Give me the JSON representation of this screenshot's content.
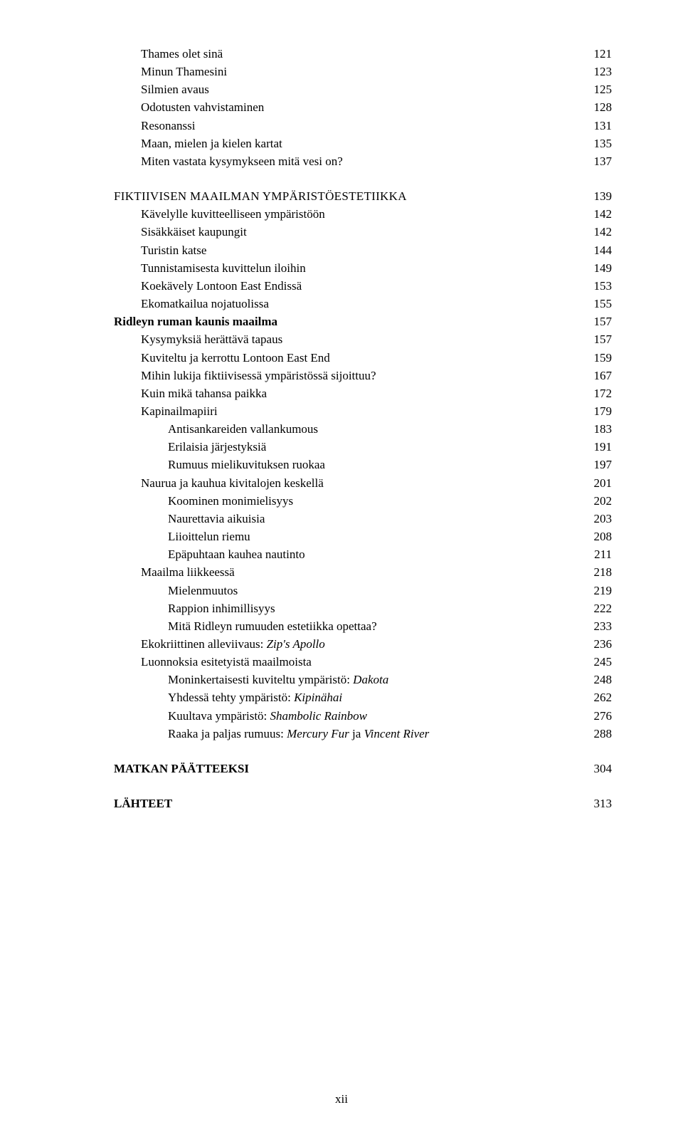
{
  "entries": [
    {
      "level": 1,
      "label": "Thames olet sinä",
      "page": "121"
    },
    {
      "level": 1,
      "label": "Minun Thamesini",
      "page": "123"
    },
    {
      "level": 1,
      "label": "Silmien avaus",
      "page": "125"
    },
    {
      "level": 1,
      "label": "Odotusten vahvistaminen",
      "page": "128"
    },
    {
      "level": 1,
      "label": "Resonanssi",
      "page": "131"
    },
    {
      "level": 1,
      "label": "Maan, mielen ja kielen kartat",
      "page": "135"
    },
    {
      "level": 1,
      "label": "Miten vastata kysymykseen mitä vesi on?",
      "page": "137"
    },
    {
      "level": 0,
      "label": "FIKTIIVISEN MAAILMAN YMPÄRISTÖESTETIIKKA",
      "page": "139",
      "heading": true
    },
    {
      "level": 1,
      "label": "Kävelylle kuvitteelliseen ympäristöön",
      "page": "142"
    },
    {
      "level": 1,
      "label": "Sisäkkäiset kaupungit",
      "page": "142"
    },
    {
      "level": 1,
      "label": "Turistin katse",
      "page": "144"
    },
    {
      "level": 1,
      "label": "Tunnistamisesta kuvittelun iloihin",
      "page": "149"
    },
    {
      "level": 1,
      "label": "Koekävely Lontoon East Endissä",
      "page": "153"
    },
    {
      "level": 1,
      "label": "Ekomatkailua nojatuolissa",
      "page": "155"
    },
    {
      "level": 0,
      "label": "Ridleyn ruman kaunis maailma",
      "page": "157",
      "bold": true
    },
    {
      "level": 1,
      "label": "Kysymyksiä herättävä tapaus",
      "page": "157"
    },
    {
      "level": 1,
      "label": "Kuviteltu ja kerrottu Lontoon East End",
      "page": "159"
    },
    {
      "level": 1,
      "label": "Mihin lukija fiktiivisessä ympäristössä sijoittuu?",
      "page": "167"
    },
    {
      "level": 1,
      "label": "Kuin mikä tahansa paikka",
      "page": "172"
    },
    {
      "level": 1,
      "label": "Kapinailmapiiri",
      "page": "179"
    },
    {
      "level": 2,
      "label": "Antisankareiden vallankumous",
      "page": "183"
    },
    {
      "level": 2,
      "label": "Erilaisia järjestyksiä",
      "page": "191"
    },
    {
      "level": 2,
      "label": "Rumuus mielikuvituksen ruokaa",
      "page": "197"
    },
    {
      "level": 1,
      "label": "Naurua ja kauhua kivitalojen keskellä",
      "page": "201"
    },
    {
      "level": 2,
      "label": "Koominen monimielisyys",
      "page": "202"
    },
    {
      "level": 2,
      "label": "Naurettavia aikuisia",
      "page": "203"
    },
    {
      "level": 2,
      "label": "Liioittelun riemu",
      "page": "208"
    },
    {
      "level": 2,
      "label": "Epäpuhtaan kauhea nautinto",
      "page": "211"
    },
    {
      "level": 1,
      "label": "Maailma liikkeessä",
      "page": "218"
    },
    {
      "level": 2,
      "label": "Mielenmuutos",
      "page": "219"
    },
    {
      "level": 2,
      "label": "Rappion inhimillisyys",
      "page": "222"
    },
    {
      "level": 2,
      "label": "Mitä Ridleyn rumuuden estetiikka opettaa?",
      "page": "233"
    },
    {
      "level": 1,
      "label_parts": [
        {
          "t": "Ekokriittinen alleviivaus: "
        },
        {
          "t": "Zip's Apollo",
          "i": true
        }
      ],
      "page": "236"
    },
    {
      "level": 1,
      "label": "Luonnoksia esitetyistä maailmoista",
      "page": "245"
    },
    {
      "level": 2,
      "label_parts": [
        {
          "t": "Moninkertaisesti kuviteltu ympäristö: "
        },
        {
          "t": "Dakota",
          "i": true
        }
      ],
      "page": "248"
    },
    {
      "level": 2,
      "label_parts": [
        {
          "t": "Yhdessä tehty ympäristö: "
        },
        {
          "t": "Kipinähai",
          "i": true
        }
      ],
      "page": "262"
    },
    {
      "level": 2,
      "label_parts": [
        {
          "t": "Kuultava ympäristö: "
        },
        {
          "t": "Shambolic Rainbow",
          "i": true
        }
      ],
      "page": "276"
    },
    {
      "level": 2,
      "label_parts": [
        {
          "t": "Raaka ja paljas rumuus: "
        },
        {
          "t": "Mercury Fur",
          "i": true
        },
        {
          "t": " ja "
        },
        {
          "t": "Vincent River",
          "i": true
        }
      ],
      "page": "288"
    },
    {
      "level": 0,
      "label": "MATKAN PÄÄTTEEKSI",
      "page": "304",
      "bold": true,
      "spacer": true
    },
    {
      "level": 0,
      "label": "LÄHTEET",
      "page": "313",
      "bold": true,
      "spacer": true
    }
  ],
  "pageNumber": "xii",
  "colors": {
    "text": "#000000",
    "background": "#ffffff"
  }
}
